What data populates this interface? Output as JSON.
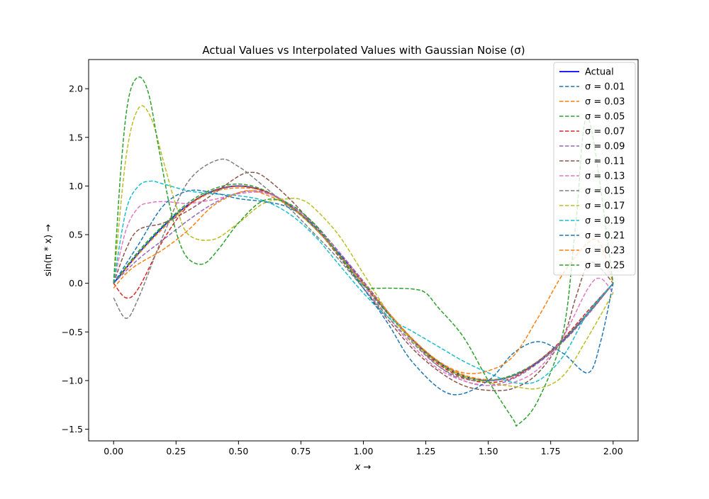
{
  "chart_data": {
    "type": "line",
    "title": "Actual Values vs Interpolated Values with Gaussian Noise (σ)",
    "xlabel": "x →",
    "ylabel": "sin(π * x) →",
    "xlim": [
      -0.1,
      2.1
    ],
    "ylim": [
      -1.62,
      2.3
    ],
    "grid": false,
    "legend_position": "top-right",
    "x_ticks": [
      0.0,
      0.25,
      0.5,
      0.75,
      1.0,
      1.25,
      1.5,
      1.75,
      2.0
    ],
    "x_tick_labels": [
      "0.00",
      "0.25",
      "0.50",
      "0.75",
      "1.00",
      "1.25",
      "1.50",
      "1.75",
      "2.00"
    ],
    "y_ticks": [
      -1.5,
      -1.0,
      -0.5,
      0.0,
      0.5,
      1.0,
      1.5,
      2.0
    ],
    "y_tick_labels": [
      "−1.5",
      "−1.0",
      "−0.5",
      "0.0",
      "0.5",
      "1.0",
      "1.5",
      "2.0"
    ],
    "series": [
      {
        "name": "Actual",
        "color": "#0000ff",
        "style": "solid",
        "x": [
          0.0,
          0.1,
          0.2,
          0.3,
          0.4,
          0.5,
          0.6,
          0.7,
          0.8,
          0.9,
          1.0,
          1.1,
          1.2,
          1.3,
          1.4,
          1.5,
          1.6,
          1.7,
          1.8,
          1.9,
          2.0
        ],
        "y": [
          0.0,
          0.309,
          0.588,
          0.809,
          0.951,
          1.0,
          0.951,
          0.809,
          0.588,
          0.309,
          0.0,
          -0.309,
          -0.588,
          -0.809,
          -0.951,
          -1.0,
          -0.951,
          -0.809,
          -0.588,
          -0.309,
          0.0
        ]
      },
      {
        "name": "σ = 0.01",
        "color": "#1f77b4",
        "style": "dashed",
        "x": [
          0.0,
          0.1,
          0.2,
          0.3,
          0.4,
          0.5,
          0.6,
          0.7,
          0.8,
          0.9,
          1.0,
          1.1,
          1.2,
          1.3,
          1.4,
          1.5,
          1.6,
          1.7,
          1.8,
          1.9,
          2.0
        ],
        "y": [
          0.0,
          0.31,
          0.59,
          0.81,
          0.95,
          1.0,
          0.95,
          0.81,
          0.59,
          0.31,
          0.0,
          -0.31,
          -0.59,
          -0.81,
          -0.95,
          -1.0,
          -0.95,
          -0.81,
          -0.59,
          -0.31,
          0.0
        ]
      },
      {
        "name": "σ = 0.03",
        "color": "#ff7f0e",
        "style": "dashed",
        "x": [
          0.0,
          0.1,
          0.2,
          0.3,
          0.4,
          0.5,
          0.6,
          0.7,
          0.8,
          0.9,
          1.0,
          1.1,
          1.2,
          1.3,
          1.4,
          1.5,
          1.6,
          1.7,
          1.8,
          1.9,
          2.0
        ],
        "y": [
          0.0,
          0.3,
          0.57,
          0.8,
          0.94,
          0.98,
          0.95,
          0.8,
          0.6,
          0.3,
          0.0,
          -0.3,
          -0.58,
          -0.8,
          -0.94,
          -0.99,
          -0.95,
          -0.8,
          -0.6,
          -0.32,
          0.0
        ]
      },
      {
        "name": "σ = 0.05",
        "color": "#2ca02c",
        "style": "dashed",
        "x": [
          0.0,
          0.1,
          0.2,
          0.3,
          0.4,
          0.5,
          0.6,
          0.7,
          0.8,
          0.9,
          1.0,
          1.1,
          1.2,
          1.3,
          1.4,
          1.5,
          1.6,
          1.7,
          1.8,
          1.9,
          2.0
        ],
        "y": [
          0.0,
          0.33,
          0.6,
          0.83,
          0.97,
          1.02,
          0.96,
          0.8,
          0.58,
          0.3,
          -0.02,
          -0.32,
          -0.6,
          -0.82,
          -0.96,
          -1.0,
          -0.94,
          -0.8,
          -0.58,
          -0.3,
          0.0
        ]
      },
      {
        "name": "σ = 0.07",
        "color": "#d62728",
        "style": "dashed",
        "x": [
          0.0,
          0.05,
          0.1,
          0.2,
          0.3,
          0.4,
          0.5,
          0.6,
          0.7,
          0.8,
          0.9,
          1.0,
          1.1,
          1.2,
          1.3,
          1.4,
          1.5,
          1.6,
          1.7,
          1.8,
          1.9,
          2.0
        ],
        "y": [
          0.0,
          -0.15,
          -0.05,
          0.45,
          0.8,
          0.95,
          1.0,
          0.95,
          0.82,
          0.62,
          0.33,
          0.02,
          -0.3,
          -0.6,
          -0.83,
          -0.97,
          -1.02,
          -0.97,
          -0.8,
          -0.57,
          -0.28,
          0.0
        ]
      },
      {
        "name": "σ = 0.09",
        "color": "#9467bd",
        "style": "dashed",
        "x": [
          0.0,
          0.1,
          0.2,
          0.3,
          0.4,
          0.5,
          0.6,
          0.7,
          0.8,
          0.9,
          1.0,
          1.1,
          1.2,
          1.3,
          1.4,
          1.5,
          1.6,
          1.7,
          1.8,
          1.9,
          2.0
        ],
        "y": [
          0.0,
          0.25,
          0.45,
          0.65,
          0.82,
          0.93,
          0.94,
          0.82,
          0.62,
          0.33,
          0.02,
          -0.3,
          -0.6,
          -0.85,
          -1.0,
          -1.05,
          -0.98,
          -0.82,
          -0.6,
          -0.32,
          0.0
        ]
      },
      {
        "name": "σ = 0.11",
        "color": "#8c564b",
        "style": "dashed",
        "x": [
          0.0,
          0.05,
          0.1,
          0.2,
          0.3,
          0.4,
          0.5,
          0.55,
          0.6,
          0.7,
          0.8,
          0.9,
          1.0,
          1.1,
          1.2,
          1.3,
          1.4,
          1.5,
          1.6,
          1.7,
          1.8,
          1.85,
          1.9,
          1.95,
          2.0
        ],
        "y": [
          0.0,
          0.35,
          0.55,
          0.62,
          0.75,
          0.92,
          1.1,
          1.14,
          1.1,
          0.88,
          0.6,
          0.28,
          -0.05,
          -0.38,
          -0.68,
          -0.9,
          -1.05,
          -1.1,
          -1.08,
          -0.92,
          -0.55,
          -0.15,
          0.2,
          0.15,
          0.0
        ]
      },
      {
        "name": "σ = 0.13",
        "color": "#e377c2",
        "style": "dashed",
        "x": [
          0.0,
          0.05,
          0.1,
          0.15,
          0.2,
          0.25,
          0.3,
          0.4,
          0.5,
          0.6,
          0.7,
          0.8,
          0.9,
          1.0,
          1.1,
          1.2,
          1.3,
          1.4,
          1.5,
          1.6,
          1.7,
          1.8,
          1.9,
          1.95,
          2.0
        ],
        "y": [
          0.0,
          0.55,
          0.78,
          0.83,
          0.84,
          0.83,
          0.82,
          0.86,
          0.92,
          0.93,
          0.82,
          0.6,
          0.3,
          -0.02,
          -0.35,
          -0.65,
          -0.88,
          -1.0,
          -1.05,
          -1.02,
          -0.88,
          -0.55,
          -0.05,
          0.05,
          -0.1
        ]
      },
      {
        "name": "σ = 0.15",
        "color": "#7f7f7f",
        "style": "dashed",
        "x": [
          0.0,
          0.05,
          0.1,
          0.2,
          0.3,
          0.42,
          0.5,
          0.6,
          0.7,
          0.8,
          0.9,
          1.0,
          1.1,
          1.2,
          1.3,
          1.4,
          1.5,
          1.6,
          1.7,
          1.8,
          1.9,
          2.0
        ],
        "y": [
          -0.15,
          -0.36,
          -0.15,
          0.5,
          1.05,
          1.27,
          1.2,
          1.0,
          0.78,
          0.52,
          0.25,
          -0.05,
          -0.35,
          -0.62,
          -0.85,
          -0.98,
          -1.0,
          -0.95,
          -0.8,
          -0.58,
          -0.3,
          0.0
        ]
      },
      {
        "name": "σ = 0.17",
        "color": "#bcbd22",
        "style": "dashed",
        "x": [
          0.0,
          0.05,
          0.1,
          0.15,
          0.2,
          0.25,
          0.3,
          0.4,
          0.5,
          0.6,
          0.7,
          0.75,
          0.8,
          0.9,
          1.0,
          1.1,
          1.2,
          1.3,
          1.4,
          1.5,
          1.6,
          1.7,
          1.8,
          1.9,
          2.0
        ],
        "y": [
          0.0,
          1.3,
          1.8,
          1.7,
          1.25,
          0.8,
          0.5,
          0.45,
          0.62,
          0.82,
          0.87,
          0.86,
          0.78,
          0.5,
          0.1,
          -0.3,
          -0.6,
          -0.82,
          -0.95,
          -1.02,
          -1.06,
          -1.08,
          -0.95,
          -0.55,
          -0.1
        ]
      },
      {
        "name": "σ = 0.19",
        "color": "#17becf",
        "style": "dashed",
        "x": [
          0.0,
          0.05,
          0.1,
          0.15,
          0.2,
          0.3,
          0.4,
          0.5,
          0.6,
          0.7,
          0.8,
          0.9,
          1.0,
          1.1,
          1.2,
          1.3,
          1.4,
          1.5,
          1.6,
          1.7,
          1.8,
          1.9,
          2.0
        ],
        "y": [
          0.0,
          0.75,
          1.0,
          1.05,
          1.02,
          0.95,
          0.92,
          0.9,
          0.85,
          0.72,
          0.5,
          0.2,
          -0.1,
          -0.35,
          -0.5,
          -0.65,
          -0.8,
          -0.92,
          -1.02,
          -1.0,
          -0.75,
          -0.3,
          0.0
        ]
      },
      {
        "name": "σ = 0.21",
        "color": "#1f77b4",
        "style": "dashed",
        "x": [
          0.0,
          0.1,
          0.2,
          0.3,
          0.4,
          0.5,
          0.6,
          0.7,
          0.8,
          0.9,
          1.0,
          1.1,
          1.2,
          1.35,
          1.5,
          1.6,
          1.7,
          1.8,
          1.9,
          1.95,
          2.0
        ],
        "y": [
          0.0,
          0.4,
          0.8,
          0.95,
          0.93,
          0.87,
          0.84,
          0.78,
          0.6,
          0.3,
          -0.05,
          -0.42,
          -0.82,
          -1.14,
          -1.0,
          -0.72,
          -0.6,
          -0.72,
          -0.92,
          -0.6,
          0.0
        ]
      },
      {
        "name": "σ = 0.23",
        "color": "#ff7f0e",
        "style": "dashed",
        "x": [
          0.0,
          0.05,
          0.1,
          0.2,
          0.3,
          0.4,
          0.5,
          0.55,
          0.6,
          0.7,
          0.8,
          0.9,
          1.0,
          1.1,
          1.2,
          1.3,
          1.4,
          1.5,
          1.6,
          1.7,
          1.8,
          1.9,
          1.95,
          2.0
        ],
        "y": [
          -0.05,
          0.1,
          0.2,
          0.35,
          0.55,
          0.8,
          0.93,
          0.95,
          0.92,
          0.8,
          0.58,
          0.3,
          0.0,
          -0.3,
          -0.58,
          -0.8,
          -0.92,
          -0.9,
          -0.75,
          -0.35,
          0.1,
          0.42,
          0.4,
          0.0
        ]
      },
      {
        "name": "σ = 0.25",
        "color": "#2ca02c",
        "style": "dashed",
        "x": [
          0.0,
          0.03,
          0.06,
          0.1,
          0.14,
          0.18,
          0.22,
          0.26,
          0.3,
          0.36,
          0.42,
          0.5,
          0.6,
          0.7,
          0.8,
          0.9,
          1.0,
          1.05,
          1.1,
          1.2,
          1.25,
          1.3,
          1.4,
          1.5,
          1.6,
          1.62,
          1.7,
          1.8,
          1.85,
          1.9,
          2.0
        ],
        "y": [
          0.0,
          1.2,
          1.9,
          2.12,
          1.95,
          1.4,
          0.85,
          0.45,
          0.25,
          0.2,
          0.35,
          0.62,
          0.85,
          0.82,
          0.62,
          0.3,
          -0.02,
          -0.05,
          -0.05,
          -0.06,
          -0.1,
          -0.25,
          -0.55,
          -1.0,
          -1.4,
          -1.45,
          -1.2,
          -0.5,
          0.6,
          1.7,
          0.0
        ]
      }
    ]
  }
}
